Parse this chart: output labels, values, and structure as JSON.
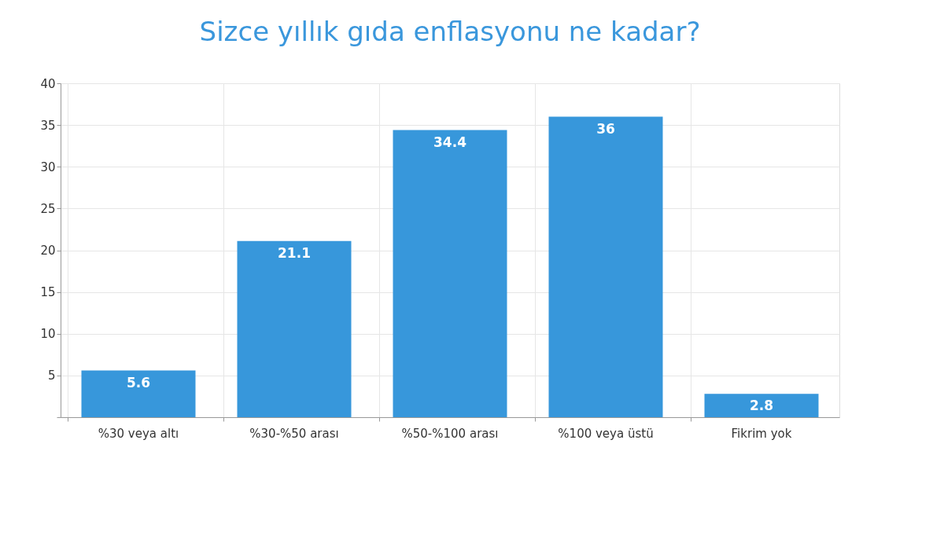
{
  "chart_data": {
    "type": "bar",
    "title": "Sizce yıllık gıda enflasyonu ne kadar?",
    "categories": [
      "%30 veya altı",
      "%30-%50 arası",
      "%50-%100 arası",
      "%100 veya üstü",
      "Fikrim yok"
    ],
    "values": [
      5.6,
      21.1,
      34.4,
      36,
      2.8
    ],
    "color": "#3797db",
    "ylim": [
      0,
      40
    ],
    "yticks": [
      {
        "value": 0,
        "label": null
      },
      5,
      10,
      15,
      20,
      25,
      30,
      35,
      40
    ],
    "grid": true,
    "data_labels": true
  }
}
